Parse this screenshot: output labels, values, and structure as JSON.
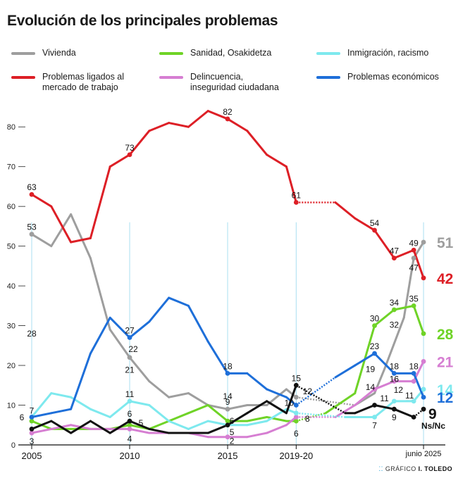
{
  "title": "Evolución de los principales problemas",
  "credit_prefix": "GRÁFICO",
  "credit_author": "I. TOLEDO",
  "chart_data": {
    "type": "line",
    "title": "Evolución de los principales problemas",
    "ylim": [
      0,
      85
    ],
    "yticks": [
      0,
      10,
      20,
      30,
      40,
      50,
      60,
      70,
      80
    ],
    "xlim": [
      2005,
      2026.4
    ],
    "xticks": [
      {
        "x": 2005,
        "label": "2005"
      },
      {
        "x": 2010,
        "label": "2010"
      },
      {
        "x": 2015,
        "label": "2015"
      },
      {
        "x": 2018.5,
        "label": "2019-20"
      },
      {
        "x": 2025,
        "label": "junio 2025"
      }
    ],
    "guides": [
      2005,
      2010,
      2015,
      2018.5,
      2025
    ],
    "grid": false,
    "legend_position": "top",
    "series": [
      {
        "name": "Vivienda",
        "color": "#9e9e9e",
        "points": [
          [
            2005,
            53
          ],
          [
            2006,
            50
          ],
          [
            2007,
            58
          ],
          [
            2008,
            47
          ],
          [
            2009,
            29
          ],
          [
            2010,
            22
          ],
          [
            2011,
            16
          ],
          [
            2012,
            12
          ],
          [
            2013,
            13
          ],
          [
            2014,
            10
          ],
          [
            2015,
            9
          ],
          [
            2016,
            10
          ],
          [
            2017,
            10
          ],
          [
            2018,
            14
          ],
          [
            2018.5,
            12
          ],
          [
            2021.5,
            10
          ],
          [
            2022.5,
            13
          ],
          [
            2023,
            19
          ],
          [
            2024,
            32
          ],
          [
            2024.5,
            47
          ],
          [
            2025,
            51
          ]
        ],
        "dashed_segments": [
          [
            2018.5,
            2021.5
          ]
        ],
        "markers": [
          2005,
          2010,
          2015,
          2018.5,
          2024.5,
          2025
        ],
        "end_label": "51"
      },
      {
        "name": "Problemas ligados al mercado de trabajo",
        "color": "#dd1f26",
        "points": [
          [
            2005,
            63
          ],
          [
            2006,
            60
          ],
          [
            2007,
            51
          ],
          [
            2008,
            52
          ],
          [
            2009,
            70
          ],
          [
            2010,
            73
          ],
          [
            2011,
            79
          ],
          [
            2012,
            81
          ],
          [
            2013,
            80
          ],
          [
            2014,
            84
          ],
          [
            2015,
            82
          ],
          [
            2016,
            79
          ],
          [
            2017,
            73
          ],
          [
            2018,
            70
          ],
          [
            2018.5,
            61
          ],
          [
            2020.5,
            61
          ],
          [
            2021.5,
            57
          ],
          [
            2022.5,
            54
          ],
          [
            2023.5,
            47
          ],
          [
            2024.5,
            49
          ],
          [
            2025,
            42
          ]
        ],
        "dashed_segments": [
          [
            2018.5,
            2020.5
          ]
        ],
        "markers": [
          2005,
          2010,
          2015,
          2018.5,
          2022.5,
          2023.5,
          2024.5,
          2025
        ],
        "end_label": "42"
      },
      {
        "name": "Sanidad, Osakidetza",
        "color": "#6fd327",
        "points": [
          [
            2005,
            6
          ],
          [
            2006,
            4
          ],
          [
            2007,
            4
          ],
          [
            2008,
            4
          ],
          [
            2009,
            4
          ],
          [
            2010,
            5
          ],
          [
            2011,
            4
          ],
          [
            2012,
            6
          ],
          [
            2013,
            8
          ],
          [
            2014,
            10
          ],
          [
            2015,
            6
          ],
          [
            2016,
            6
          ],
          [
            2017,
            7
          ],
          [
            2018,
            6
          ],
          [
            2018.5,
            6
          ],
          [
            2020,
            8
          ],
          [
            2021.5,
            13
          ],
          [
            2022.5,
            30
          ],
          [
            2023.5,
            34
          ],
          [
            2024.5,
            35
          ],
          [
            2025,
            28
          ]
        ],
        "dashed_segments": [
          [
            2018.5,
            2020
          ]
        ],
        "markers": [
          2005,
          2010,
          2015,
          2018.5,
          2022.5,
          2023.5,
          2024.5,
          2025
        ],
        "end_label": "28"
      },
      {
        "name": "Delincuencia,\ninseguridad ciudadana",
        "color": "#d67ed2",
        "points": [
          [
            2005,
            3
          ],
          [
            2006,
            4
          ],
          [
            2007,
            5
          ],
          [
            2008,
            4
          ],
          [
            2009,
            4
          ],
          [
            2010,
            4
          ],
          [
            2011,
            3
          ],
          [
            2012,
            3
          ],
          [
            2013,
            3
          ],
          [
            2014,
            2
          ],
          [
            2015,
            2
          ],
          [
            2016,
            2
          ],
          [
            2017,
            3
          ],
          [
            2018,
            5
          ],
          [
            2018.5,
            7
          ],
          [
            2020.5,
            7
          ],
          [
            2021.5,
            10
          ],
          [
            2022.5,
            14
          ],
          [
            2023.5,
            16
          ],
          [
            2024.5,
            16
          ],
          [
            2025,
            21
          ]
        ],
        "dashed_segments": [
          [
            2018.5,
            2020.5
          ]
        ],
        "markers": [
          2005,
          2010,
          2015,
          2018.5,
          2022.5,
          2023.5,
          2024.5,
          2025
        ],
        "end_label": "21"
      },
      {
        "name": "Inmigración, racismo",
        "color": "#7ee9ee",
        "points": [
          [
            2005,
            7
          ],
          [
            2006,
            13
          ],
          [
            2007,
            12
          ],
          [
            2008,
            9
          ],
          [
            2009,
            7
          ],
          [
            2010,
            11
          ],
          [
            2011,
            10
          ],
          [
            2012,
            6
          ],
          [
            2013,
            4
          ],
          [
            2014,
            6
          ],
          [
            2015,
            5
          ],
          [
            2016,
            5
          ],
          [
            2017,
            6
          ],
          [
            2018,
            9
          ],
          [
            2018.5,
            8
          ],
          [
            2021,
            7
          ],
          [
            2022.5,
            7
          ],
          [
            2023.5,
            11
          ],
          [
            2024.5,
            11
          ],
          [
            2025,
            14
          ]
        ],
        "dashed_segments": [
          [
            2018.5,
            2021
          ]
        ],
        "markers": [
          2005,
          2010,
          2015,
          2018.5,
          2022.5,
          2023.5,
          2024.5,
          2025
        ],
        "end_label": "14"
      },
      {
        "name": "Problemas económicos",
        "color": "#1e6fd9",
        "points": [
          [
            2005,
            7
          ],
          [
            2006,
            8
          ],
          [
            2007,
            9
          ],
          [
            2008,
            23
          ],
          [
            2009,
            32
          ],
          [
            2010,
            27
          ],
          [
            2011,
            31
          ],
          [
            2012,
            37
          ],
          [
            2013,
            35
          ],
          [
            2014,
            26
          ],
          [
            2015,
            18
          ],
          [
            2016,
            18
          ],
          [
            2017,
            14
          ],
          [
            2018,
            12
          ],
          [
            2018.5,
            10
          ],
          [
            2020.5,
            17
          ],
          [
            2021.5,
            20
          ],
          [
            2022.5,
            23
          ],
          [
            2023.5,
            18
          ],
          [
            2024.5,
            18
          ],
          [
            2025,
            12
          ]
        ],
        "dashed_segments": [
          [
            2018.5,
            2020.5
          ]
        ],
        "markers": [
          2005,
          2010,
          2015,
          2018.5,
          2022.5,
          2023.5,
          2024.5,
          2025
        ],
        "end_label": "12"
      },
      {
        "name": "Ns/Nc",
        "color": "#111111",
        "points": [
          [
            2005,
            4
          ],
          [
            2006,
            6
          ],
          [
            2007,
            3
          ],
          [
            2008,
            6
          ],
          [
            2009,
            3
          ],
          [
            2010,
            6
          ],
          [
            2011,
            4
          ],
          [
            2012,
            3
          ],
          [
            2013,
            3
          ],
          [
            2014,
            3
          ],
          [
            2015,
            5
          ],
          [
            2016,
            8
          ],
          [
            2017,
            11
          ],
          [
            2018,
            8
          ],
          [
            2018.5,
            15
          ],
          [
            2021,
            8
          ],
          [
            2021.5,
            8
          ],
          [
            2022.5,
            10
          ],
          [
            2023.5,
            9
          ],
          [
            2024.5,
            7
          ],
          [
            2025,
            9
          ]
        ],
        "dashed_segments": [
          [
            2018.5,
            2021
          ],
          [
            2024.5,
            2025
          ]
        ],
        "markers": [
          2005,
          2010,
          2015,
          2018.5,
          2022.5,
          2023.5,
          2024.5,
          2025
        ],
        "end_label": "9",
        "end_sublabel": "Ns/Nc"
      }
    ],
    "annotations": [
      {
        "x": 2005,
        "y": 63,
        "text": "63",
        "color": "#111111",
        "dx": 0,
        "dy": -10
      },
      {
        "x": 2005,
        "y": 53,
        "text": "53",
        "color": "#111111",
        "dx": 0,
        "dy": -10
      },
      {
        "x": 2005,
        "y": 28,
        "text": "28",
        "color": "#111111",
        "dx": 0,
        "dy": 0
      },
      {
        "x": 2005,
        "y": 7,
        "text": "7",
        "color": "#111111",
        "dx": 0,
        "dy": -9
      },
      {
        "x": 2005,
        "y": 6,
        "text": "6",
        "color": "#111111",
        "dx": -14,
        "dy": -5
      },
      {
        "x": 2005,
        "y": 3,
        "text": "3",
        "color": "#111111",
        "dx": 0,
        "dy": 12
      },
      {
        "x": 2010,
        "y": 73,
        "text": "73",
        "color": "#111111",
        "dx": 0,
        "dy": -10
      },
      {
        "x": 2010,
        "y": 27,
        "text": "27",
        "color": "#111111",
        "dx": 0,
        "dy": -10
      },
      {
        "x": 2010,
        "y": 22,
        "text": "22",
        "color": "#111111",
        "dx": 5,
        "dy": -12
      },
      {
        "x": 2010,
        "y": 21,
        "text": "21",
        "color": "#111111",
        "dx": 0,
        "dy": 12
      },
      {
        "x": 2010,
        "y": 11,
        "text": "11",
        "color": "#111111",
        "dx": 0,
        "dy": -10
      },
      {
        "x": 2010,
        "y": 6,
        "text": "6",
        "color": "#111111",
        "dx": 0,
        "dy": -10
      },
      {
        "x": 2010,
        "y": 5,
        "text": "5",
        "color": "#111111",
        "dx": 16,
        "dy": -3
      },
      {
        "x": 2010,
        "y": 4,
        "text": "4",
        "color": "#111111",
        "dx": 0,
        "dy": 14
      },
      {
        "x": 2015,
        "y": 82,
        "text": "82",
        "color": "#111111",
        "dx": 0,
        "dy": -10
      },
      {
        "x": 2015,
        "y": 18,
        "text": "18",
        "color": "#111111",
        "dx": 0,
        "dy": -10
      },
      {
        "x": 2015,
        "y": 14,
        "text": "14",
        "color": "#111111",
        "dx": 0,
        "dy": 10
      },
      {
        "x": 2015,
        "y": 9,
        "text": "9",
        "color": "#111111",
        "dx": 0,
        "dy": -10
      },
      {
        "x": 2015,
        "y": 6,
        "text": "6",
        "color": "#111111",
        "dx": 6,
        "dy": 0
      },
      {
        "x": 2015,
        "y": 5,
        "text": "5",
        "color": "#111111",
        "dx": 6,
        "dy": 10
      },
      {
        "x": 2015,
        "y": 2,
        "text": "2",
        "color": "#111111",
        "dx": 6,
        "dy": 6
      },
      {
        "x": 2018.5,
        "y": 61,
        "text": "61",
        "color": "#111111",
        "dx": 0,
        "dy": -10
      },
      {
        "x": 2018.5,
        "y": 15,
        "text": "15",
        "color": "#111111",
        "dx": 0,
        "dy": -10
      },
      {
        "x": 2018.5,
        "y": 12,
        "text": "12",
        "color": "#111111",
        "dx": 16,
        "dy": -8
      },
      {
        "x": 2018.5,
        "y": 10,
        "text": "10",
        "color": "#111111",
        "dx": -10,
        "dy": -3
      },
      {
        "x": 2018.5,
        "y": 8,
        "text": "8",
        "color": "#111111",
        "dx": 16,
        "dy": 8
      },
      {
        "x": 2018.5,
        "y": 6,
        "text": "6",
        "color": "#111111",
        "dx": 0,
        "dy": 18
      },
      {
        "x": 2022.5,
        "y": 54,
        "text": "54",
        "color": "#111111",
        "dx": 0,
        "dy": -10
      },
      {
        "x": 2022.5,
        "y": 30,
        "text": "30",
        "color": "#111111",
        "dx": 0,
        "dy": -10
      },
      {
        "x": 2022.5,
        "y": 23,
        "text": "23",
        "color": "#111111",
        "dx": 0,
        "dy": -10
      },
      {
        "x": 2022.5,
        "y": 19,
        "text": "19",
        "color": "#111111",
        "dx": -6,
        "dy": 0
      },
      {
        "x": 2022.5,
        "y": 14,
        "text": "14",
        "color": "#111111",
        "dx": -6,
        "dy": -3
      },
      {
        "x": 2022.5,
        "y": 11,
        "text": "11",
        "color": "#111111",
        "dx": 14,
        "dy": -4
      },
      {
        "x": 2022.5,
        "y": 7,
        "text": "7",
        "color": "#111111",
        "dx": 0,
        "dy": 12
      },
      {
        "x": 2023.5,
        "y": 47,
        "text": "47",
        "color": "#111111",
        "dx": 0,
        "dy": -10
      },
      {
        "x": 2023.5,
        "y": 34,
        "text": "34",
        "color": "#111111",
        "dx": 0,
        "dy": -10
      },
      {
        "x": 2023.5,
        "y": 32,
        "text": "32",
        "color": "#111111",
        "dx": 0,
        "dy": 10
      },
      {
        "x": 2023.5,
        "y": 18,
        "text": "18",
        "color": "#111111",
        "dx": 0,
        "dy": -10
      },
      {
        "x": 2023.5,
        "y": 16,
        "text": "16",
        "color": "#111111",
        "dx": 0,
        "dy": -3
      },
      {
        "x": 2023.5,
        "y": 12,
        "text": "12",
        "color": "#111111",
        "dx": 6,
        "dy": -10
      },
      {
        "x": 2023.5,
        "y": 9,
        "text": "9",
        "color": "#111111",
        "dx": 0,
        "dy": 12
      },
      {
        "x": 2024.5,
        "y": 49,
        "text": "49",
        "color": "#111111",
        "dx": 0,
        "dy": -10
      },
      {
        "x": 2024.5,
        "y": 47,
        "text": "47",
        "color": "#111111",
        "dx": 0,
        "dy": 14
      },
      {
        "x": 2024.5,
        "y": 35,
        "text": "35",
        "color": "#111111",
        "dx": 0,
        "dy": -10
      },
      {
        "x": 2024.5,
        "y": 18,
        "text": "18",
        "color": "#111111",
        "dx": 0,
        "dy": -10
      },
      {
        "x": 2024.5,
        "y": 11,
        "text": "11",
        "color": "#111111",
        "dx": -6,
        "dy": -8
      }
    ]
  },
  "legend": [
    {
      "label": "Vivienda",
      "color": "#9e9e9e"
    },
    {
      "label": "Sanidad, Osakidetza",
      "color": "#6fd327"
    },
    {
      "label": "Inmigración, racismo",
      "color": "#7ee9ee"
    },
    {
      "label": "Problemas ligados al\nmercado de trabajo",
      "color": "#dd1f26"
    },
    {
      "label": "Delincuencia,\ninseguridad ciudadana",
      "color": "#d67ed2"
    },
    {
      "label": "Problemas económicos",
      "color": "#1e6fd9"
    }
  ]
}
